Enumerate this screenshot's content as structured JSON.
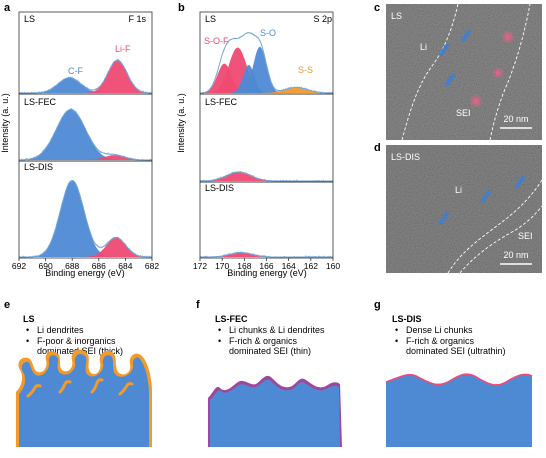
{
  "colors": {
    "blue": "#4e8ad4",
    "pink": "#ef4a73",
    "orange": "#f39a2a",
    "purple": "#a0479c",
    "fit_line": "#7fb2dc",
    "frame": "#333333",
    "tem_bg": "#8b8b8b"
  },
  "panel_letters": {
    "a": "a",
    "b": "b",
    "c": "c",
    "d": "d",
    "e": "e",
    "f": "f",
    "g": "g"
  },
  "chart_data": [
    {
      "type": "area",
      "panel": "a",
      "element": "F 1s",
      "xlabel": "Binding energy (eV)",
      "ylabel": "Intensity (a. u.)",
      "xlim": [
        692,
        682
      ],
      "xticks": [
        692,
        690,
        688,
        686,
        684,
        682
      ],
      "subplots": [
        {
          "sample": "LS",
          "peaks": [
            {
              "label": "C-F",
              "center": 688.2,
              "fwhm": 2.0,
              "height": 0.22,
              "color": "blue"
            },
            {
              "label": "Li-F",
              "center": 684.6,
              "fwhm": 1.7,
              "height": 0.47,
              "color": "pink"
            }
          ]
        },
        {
          "sample": "LS-FEC",
          "peaks": [
            {
              "label": "",
              "center": 688.1,
              "fwhm": 2.6,
              "height": 0.92,
              "color": "blue"
            },
            {
              "label": "",
              "center": 684.8,
              "fwhm": 1.8,
              "height": 0.09,
              "color": "pink"
            }
          ]
        },
        {
          "sample": "LS-DIS",
          "peaks": [
            {
              "label": "",
              "center": 688.0,
              "fwhm": 2.1,
              "height": 0.9,
              "color": "blue"
            },
            {
              "label": "",
              "center": 684.7,
              "fwhm": 1.7,
              "height": 0.23,
              "color": "pink"
            }
          ]
        }
      ]
    },
    {
      "type": "area",
      "panel": "b",
      "element": "S 2p",
      "xlabel": "Binding energy (eV)",
      "ylabel": "Intensity (a. u.)",
      "xlim": [
        172,
        160
      ],
      "xticks": [
        172,
        170,
        168,
        166,
        164,
        162,
        160
      ],
      "subplots": [
        {
          "sample": "LS",
          "peaks": [
            {
              "label": "S-O-F",
              "center": 168.6,
              "fwhm": 1.9,
              "height": 0.65,
              "color": "pink"
            },
            {
              "label": "",
              "center": 169.8,
              "fwhm": 1.5,
              "height": 0.42,
              "color": "pink"
            },
            {
              "label": "S-O",
              "center": 166.6,
              "fwhm": 1.4,
              "height": 0.66,
              "color": "blue"
            },
            {
              "label": "",
              "center": 167.6,
              "fwhm": 1.2,
              "height": 0.4,
              "color": "blue"
            },
            {
              "label": "S-S",
              "center": 163.3,
              "fwhm": 2.4,
              "height": 0.08,
              "color": "orange"
            }
          ]
        },
        {
          "sample": "LS-FEC",
          "peaks": [
            {
              "label": "",
              "center": 168.5,
              "fwhm": 2.6,
              "height": 0.12,
              "color": "pink"
            }
          ]
        },
        {
          "sample": "LS-DIS",
          "peaks": [
            {
              "label": "",
              "center": 168.3,
              "fwhm": 2.4,
              "height": 0.07,
              "color": "pink"
            }
          ]
        }
      ]
    }
  ],
  "tem": {
    "c": {
      "sample": "LS",
      "region_li": "Li",
      "region_sei": "SEI",
      "scale_bar": "20 nm"
    },
    "d": {
      "sample": "LS-DIS",
      "region_li": "Li",
      "region_sei": "SEI",
      "scale_bar": "20 nm"
    }
  },
  "schematics": [
    {
      "panel": "e",
      "title": "LS",
      "bullets": [
        "Li dendrites",
        "F-poor & inorganics",
        "dominated SEI (thick)"
      ]
    },
    {
      "panel": "f",
      "title": "LS-FEC",
      "bullets": [
        "Li chunks & Li dendrites",
        "F-rich & organics",
        "dominated SEI (thin)"
      ]
    },
    {
      "panel": "g",
      "title": "LS-DIS",
      "bullets": [
        "Dense Li chunks",
        "F-rich & organics",
        "dominated SEI (ultrathin)"
      ]
    }
  ]
}
